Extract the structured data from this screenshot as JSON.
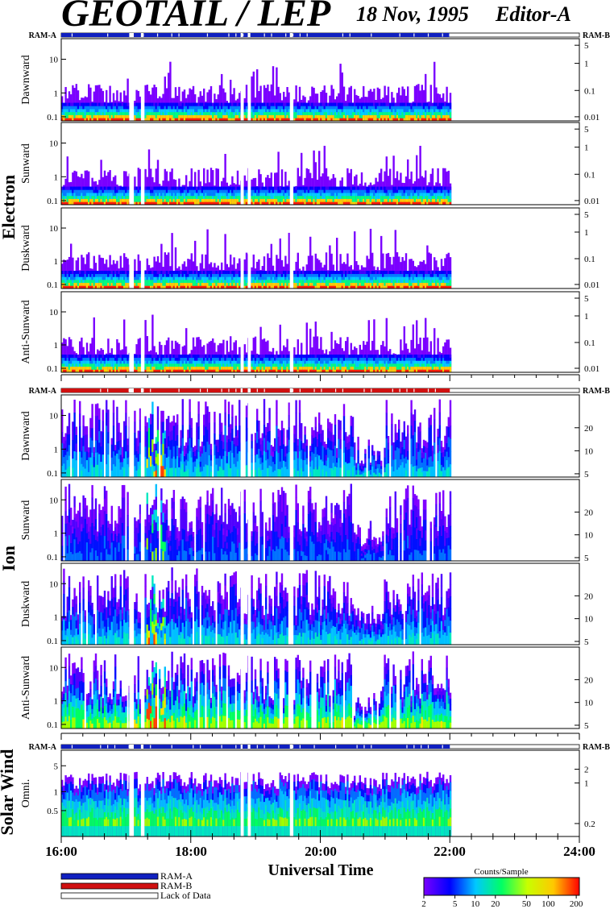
{
  "header": {
    "title": "GEOTAIL / LEP",
    "date": "18 Nov, 1995",
    "editor": "Editor-A"
  },
  "chart_data": {
    "type": "heatmap",
    "xlabel": "Universal Time",
    "x_ticks": [
      "16:00",
      "18:00",
      "20:00",
      "22:00",
      "24:00"
    ],
    "x_range_hours": [
      16,
      24
    ],
    "data_end_hour": 22,
    "data_gaps_hours": [
      [
        17.05,
        17.12
      ],
      [
        17.23,
        17.27
      ],
      [
        18.77,
        18.8
      ],
      [
        18.88,
        18.92
      ],
      [
        19.53,
        19.57
      ]
    ],
    "groups": [
      {
        "name": "Electron",
        "ram_left": "RAM-A",
        "ram_right": "RAM-B",
        "ram_color": "#1020c0",
        "panels": [
          {
            "label": "Dawnward",
            "left_ticks": [
              "10",
              "1",
              "0.1"
            ],
            "right_ticks": [
              "5",
              "1",
              "0.1",
              "0.01"
            ]
          },
          {
            "label": "Sunward",
            "left_ticks": [
              "10",
              "1",
              "0.1"
            ],
            "right_ticks": [
              "5",
              "1",
              "0.1",
              "0.01"
            ]
          },
          {
            "label": "Duskward",
            "left_ticks": [
              "10",
              "1",
              "0.1"
            ],
            "right_ticks": [
              "5",
              "1",
              "0.1",
              "0.01"
            ]
          },
          {
            "label": "Anti-Sunward",
            "left_ticks": [
              "10",
              "1",
              "0.1"
            ],
            "right_ticks": [
              "5",
              "1",
              "0.1",
              "0.01"
            ]
          }
        ]
      },
      {
        "name": "Ion",
        "ram_left": "RAM-A",
        "ram_right": "RAM-B",
        "ram_color": "#d01010",
        "panels": [
          {
            "label": "Dawnward",
            "left_ticks": [
              "10",
              "1",
              "0.1"
            ],
            "right_ticks": [
              "20",
              "10",
              "5"
            ]
          },
          {
            "label": "Sunward",
            "left_ticks": [
              "10",
              "1",
              "0.1"
            ],
            "right_ticks": [
              "20",
              "10",
              "5"
            ]
          },
          {
            "label": "Duskward",
            "left_ticks": [
              "10",
              "1",
              "0.1"
            ],
            "right_ticks": [
              "20",
              "10",
              "5"
            ]
          },
          {
            "label": "Anti-Sunward",
            "left_ticks": [
              "10",
              "1",
              "0.1"
            ],
            "right_ticks": [
              "20",
              "10",
              "5"
            ]
          }
        ]
      },
      {
        "name": "Solar Wind",
        "ram_left": "RAM-A",
        "ram_right": "RAM-B",
        "ram_color": "#1020c0",
        "panels": [
          {
            "label": "Omni.",
            "left_ticks": [
              "5",
              "1",
              "0.5"
            ],
            "right_ticks": [
              "2",
              "1",
              "0.2"
            ]
          }
        ]
      }
    ],
    "legend": [
      {
        "label": "RAM-A",
        "color": "#1020c0"
      },
      {
        "label": "RAM-B",
        "color": "#d01010"
      },
      {
        "label": "Lack of Data",
        "color": "#ffffff"
      }
    ],
    "colorbar": {
      "title": "Counts/Sample",
      "ticks": [
        "2",
        "5",
        "10",
        "20",
        "50",
        "100",
        "200"
      ],
      "colors": [
        "#7a00ff",
        "#0000ff",
        "#00c8ff",
        "#00ff64",
        "#c8ff00",
        "#ffc800",
        "#ff0000"
      ]
    }
  }
}
